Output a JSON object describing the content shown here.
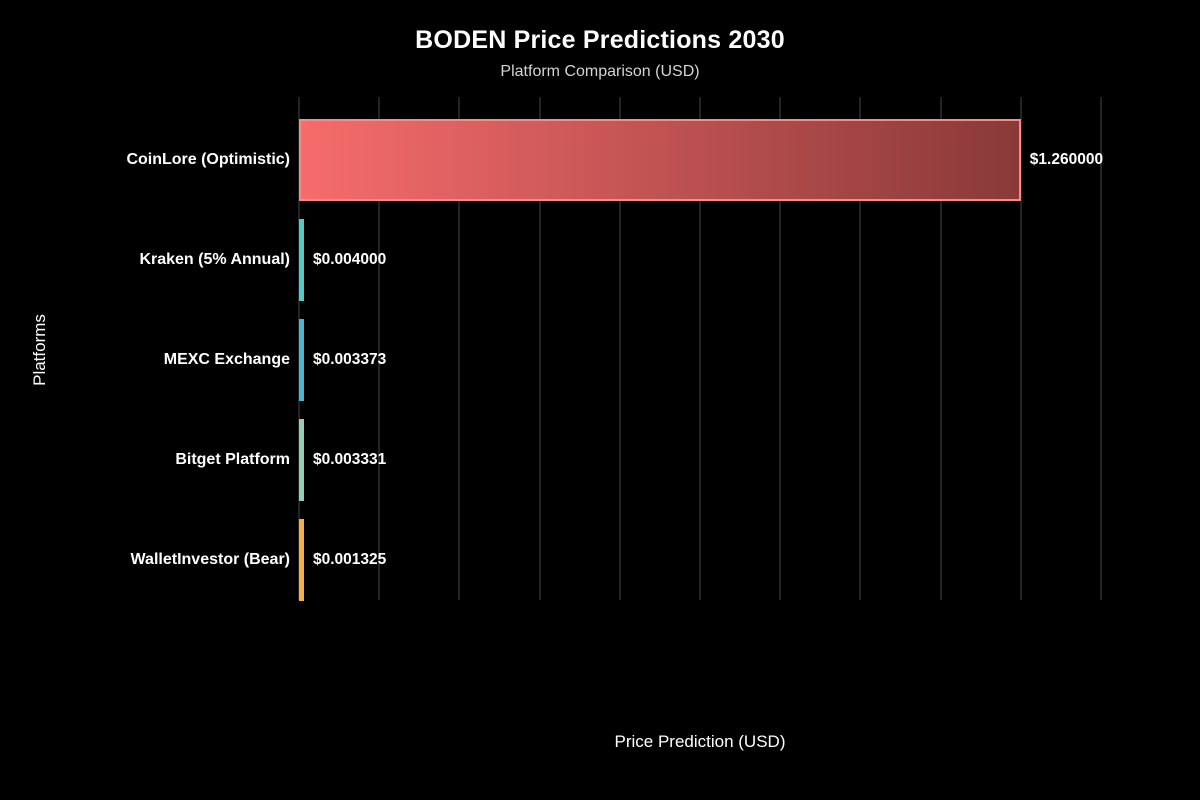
{
  "header": {
    "title": "BODEN Price Predictions 2030",
    "subtitle": "Platform Comparison (USD)"
  },
  "axes": {
    "x_label": "Price Prediction (USD)",
    "y_label": "Platforms"
  },
  "colors": {
    "background": "#000000",
    "title_text": "#ffffff",
    "subtitle_text": "#d4d4d4",
    "gridline": "#242424",
    "label_text": "#ffffff"
  },
  "chart_data": {
    "type": "bar",
    "orientation": "horizontal",
    "title": "BODEN Price Predictions 2030",
    "subtitle": "Platform Comparison (USD)",
    "xlabel": "Price Prediction (USD)",
    "ylabel": "Platforms",
    "x_range": [
      0,
      1.4
    ],
    "gridline_count": 11,
    "grid": "vertical only",
    "legend": "none",
    "categories": [
      "CoinLore (Optimistic)",
      "Kraken (5% Annual)",
      "MEXC Exchange",
      "Bitget Platform",
      "WalletInvestor (Bear)"
    ],
    "values": [
      1.26,
      0.004,
      0.003373,
      0.003331,
      0.001325
    ],
    "bars": [
      {
        "platform": "CoinLore (Optimistic)",
        "value": 1.26,
        "value_label": "$1.260000",
        "color": "#F66C6C",
        "gradient_end": "#8A3939",
        "border_color": "#F98A8A"
      },
      {
        "platform": "Kraken (5% Annual)",
        "value": 0.004,
        "value_label": "$0.004000",
        "color": "#4ECDC4"
      },
      {
        "platform": "MEXC Exchange",
        "value": 0.003373,
        "value_label": "$0.003373",
        "color": "#45B7D1"
      },
      {
        "platform": "Bitget Platform",
        "value": 0.003331,
        "value_label": "$0.003331",
        "color": "#96CEB4"
      },
      {
        "platform": "WalletInvestor (Bear)",
        "value": 0.001325,
        "value_label": "$0.001325",
        "color": "#F7B045"
      }
    ]
  }
}
